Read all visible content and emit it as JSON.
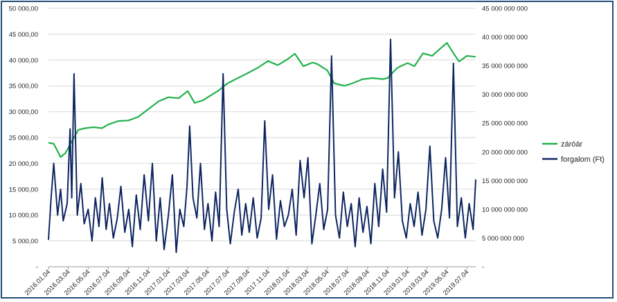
{
  "chart_data": {
    "type": "line",
    "title": "",
    "legend_position": "right",
    "grid": "horizontal",
    "x_axis": {
      "type": "date",
      "range": [
        "2016-01-04",
        "2019-07-31"
      ],
      "tick_labels": [
        "2016.01.04",
        "2016.03.04",
        "2016.05.04",
        "2016.07.04",
        "2016.09.04",
        "2016.11.04",
        "2017.01.04",
        "2017.03.04",
        "2017.05.04",
        "2017.07.04",
        "2017.09.04",
        "2017.11.04",
        "2018.01.04",
        "2018.03.04",
        "2018.05.04",
        "2018.07.04",
        "2018.09.04",
        "2018.11.04",
        "2019.01.04",
        "2019.03.04",
        "2019.05.04",
        "2019.07.04"
      ]
    },
    "y_left": {
      "range": [
        0,
        50000
      ],
      "tick_labels": [
        "-",
        "5 000,00",
        "10 000,00",
        "15 000,00",
        "20 000,00",
        "25 000,00",
        "30 000,00",
        "35 000,00",
        "40 000,00",
        "45 000,00",
        "50 000,00"
      ]
    },
    "y_right": {
      "range": [
        0,
        45000000000
      ],
      "tick_labels": [
        "-",
        "5 000 000 000",
        "10 000 000 000",
        "15 000 000 000",
        "20 000 000 000",
        "25 000 000 000",
        "30 000 000 000",
        "35 000 000 000",
        "40 000 000 000",
        "45 000 000 000"
      ]
    },
    "series": [
      {
        "name": "záróár",
        "axis": "left",
        "color": "#22b14c",
        "points": [
          [
            "2016-01-04",
            24000
          ],
          [
            "2016-01-20",
            23800
          ],
          [
            "2016-02-10",
            21200
          ],
          [
            "2016-02-25",
            22000
          ],
          [
            "2016-03-15",
            24200
          ],
          [
            "2016-04-04",
            26500
          ],
          [
            "2016-04-25",
            26800
          ],
          [
            "2016-05-20",
            27000
          ],
          [
            "2016-06-15",
            26800
          ],
          [
            "2016-07-04",
            27500
          ],
          [
            "2016-08-04",
            28200
          ],
          [
            "2016-09-04",
            28300
          ],
          [
            "2016-10-04",
            29000
          ],
          [
            "2016-11-04",
            30500
          ],
          [
            "2016-12-05",
            32000
          ],
          [
            "2017-01-04",
            32800
          ],
          [
            "2017-02-04",
            32600
          ],
          [
            "2017-03-04",
            34000
          ],
          [
            "2017-03-25",
            31700
          ],
          [
            "2017-04-20",
            32200
          ],
          [
            "2017-05-04",
            32800
          ],
          [
            "2017-06-04",
            34000
          ],
          [
            "2017-07-04",
            35500
          ],
          [
            "2017-08-04",
            36500
          ],
          [
            "2017-09-04",
            37500
          ],
          [
            "2017-10-04",
            38500
          ],
          [
            "2017-11-04",
            39800
          ],
          [
            "2017-12-04",
            39000
          ],
          [
            "2018-01-04",
            40200
          ],
          [
            "2018-01-25",
            41200
          ],
          [
            "2018-02-20",
            38800
          ],
          [
            "2018-03-20",
            39500
          ],
          [
            "2018-04-04",
            39200
          ],
          [
            "2018-05-04",
            38000
          ],
          [
            "2018-05-25",
            35500
          ],
          [
            "2018-06-25",
            35000
          ],
          [
            "2018-07-20",
            35500
          ],
          [
            "2018-08-20",
            36300
          ],
          [
            "2018-09-20",
            36500
          ],
          [
            "2018-10-20",
            36300
          ],
          [
            "2018-11-04",
            36500
          ],
          [
            "2018-12-04",
            38500
          ],
          [
            "2019-01-04",
            39400
          ],
          [
            "2019-01-25",
            38800
          ],
          [
            "2019-02-20",
            41300
          ],
          [
            "2019-03-20",
            40800
          ],
          [
            "2019-04-10",
            42000
          ],
          [
            "2019-05-04",
            43300
          ],
          [
            "2019-05-25",
            41200
          ],
          [
            "2019-06-10",
            39700
          ],
          [
            "2019-07-04",
            40800
          ],
          [
            "2019-07-31",
            40600
          ]
        ]
      },
      {
        "name": "forgalom (Ft)",
        "axis": "right",
        "color": "#0d2560",
        "points": [
          [
            "2016-01-04",
            4700000000
          ],
          [
            "2016-01-12",
            12000000000
          ],
          [
            "2016-01-20",
            18000000000
          ],
          [
            "2016-02-01",
            9000000000
          ],
          [
            "2016-02-10",
            13500000000
          ],
          [
            "2016-02-18",
            8000000000
          ],
          [
            "2016-03-01",
            11000000000
          ],
          [
            "2016-03-10",
            24000000000
          ],
          [
            "2016-03-15",
            12000000000
          ],
          [
            "2016-03-22",
            33600000000
          ],
          [
            "2016-04-01",
            9000000000
          ],
          [
            "2016-04-12",
            14500000000
          ],
          [
            "2016-04-22",
            7500000000
          ],
          [
            "2016-05-04",
            10000000000
          ],
          [
            "2016-05-16",
            4500000000
          ],
          [
            "2016-05-26",
            12000000000
          ],
          [
            "2016-06-06",
            7000000000
          ],
          [
            "2016-06-16",
            15500000000
          ],
          [
            "2016-06-28",
            6500000000
          ],
          [
            "2016-07-08",
            11000000000
          ],
          [
            "2016-07-20",
            5000000000
          ],
          [
            "2016-08-01",
            8500000000
          ],
          [
            "2016-08-12",
            14000000000
          ],
          [
            "2016-08-24",
            6000000000
          ],
          [
            "2016-09-05",
            10000000000
          ],
          [
            "2016-09-16",
            3500000000
          ],
          [
            "2016-09-28",
            12500000000
          ],
          [
            "2016-10-10",
            6500000000
          ],
          [
            "2016-10-22",
            16000000000
          ],
          [
            "2016-11-04",
            8000000000
          ],
          [
            "2016-11-16",
            18000000000
          ],
          [
            "2016-11-28",
            4500000000
          ],
          [
            "2016-12-10",
            12000000000
          ],
          [
            "2016-12-22",
            3000000000
          ],
          [
            "2017-01-04",
            9000000000
          ],
          [
            "2017-01-16",
            16000000000
          ],
          [
            "2017-01-28",
            2500000000
          ],
          [
            "2017-02-08",
            10000000000
          ],
          [
            "2017-02-20",
            7000000000
          ],
          [
            "2017-03-02",
            14000000000
          ],
          [
            "2017-03-10",
            24500000000
          ],
          [
            "2017-03-20",
            12000000000
          ],
          [
            "2017-04-01",
            8500000000
          ],
          [
            "2017-04-12",
            18000000000
          ],
          [
            "2017-04-24",
            6500000000
          ],
          [
            "2017-05-05",
            11000000000
          ],
          [
            "2017-05-17",
            4500000000
          ],
          [
            "2017-05-28",
            13000000000
          ],
          [
            "2017-06-08",
            7000000000
          ],
          [
            "2017-06-20",
            33600000000
          ],
          [
            "2017-07-01",
            10000000000
          ],
          [
            "2017-07-12",
            4000000000
          ],
          [
            "2017-07-24",
            9500000000
          ],
          [
            "2017-08-05",
            13500000000
          ],
          [
            "2017-08-16",
            5500000000
          ],
          [
            "2017-08-28",
            11000000000
          ],
          [
            "2017-09-08",
            6000000000
          ],
          [
            "2017-09-20",
            12000000000
          ],
          [
            "2017-10-02",
            5000000000
          ],
          [
            "2017-10-14",
            8500000000
          ],
          [
            "2017-10-25",
            25400000000
          ],
          [
            "2017-11-06",
            10000000000
          ],
          [
            "2017-11-18",
            16000000000
          ],
          [
            "2017-11-30",
            4800000000
          ],
          [
            "2017-12-12",
            11500000000
          ],
          [
            "2017-12-24",
            7000000000
          ],
          [
            "2018-01-05",
            9000000000
          ],
          [
            "2018-01-17",
            13500000000
          ],
          [
            "2018-01-29",
            5500000000
          ],
          [
            "2018-02-10",
            18500000000
          ],
          [
            "2018-02-22",
            12000000000
          ],
          [
            "2018-03-06",
            19000000000
          ],
          [
            "2018-03-18",
            4000000000
          ],
          [
            "2018-03-30",
            9000000000
          ],
          [
            "2018-04-11",
            14500000000
          ],
          [
            "2018-04-23",
            6500000000
          ],
          [
            "2018-05-05",
            10000000000
          ],
          [
            "2018-05-17",
            36700000000
          ],
          [
            "2018-05-29",
            9000000000
          ],
          [
            "2018-06-10",
            5000000000
          ],
          [
            "2018-06-22",
            13000000000
          ],
          [
            "2018-07-04",
            7000000000
          ],
          [
            "2018-07-16",
            11000000000
          ],
          [
            "2018-07-28",
            3500000000
          ],
          [
            "2018-08-09",
            12000000000
          ],
          [
            "2018-08-21",
            6000000000
          ],
          [
            "2018-09-02",
            10500000000
          ],
          [
            "2018-09-14",
            4000000000
          ],
          [
            "2018-09-26",
            14500000000
          ],
          [
            "2018-10-08",
            7000000000
          ],
          [
            "2018-10-20",
            17000000000
          ],
          [
            "2018-11-01",
            9500000000
          ],
          [
            "2018-11-13",
            39600000000
          ],
          [
            "2018-11-25",
            12000000000
          ],
          [
            "2018-12-07",
            20000000000
          ],
          [
            "2018-12-19",
            8000000000
          ],
          [
            "2018-12-31",
            5000000000
          ],
          [
            "2019-01-12",
            11000000000
          ],
          [
            "2019-01-24",
            7000000000
          ],
          [
            "2019-02-05",
            13000000000
          ],
          [
            "2019-02-17",
            5500000000
          ],
          [
            "2019-03-01",
            10000000000
          ],
          [
            "2019-03-13",
            21000000000
          ],
          [
            "2019-03-25",
            8000000000
          ],
          [
            "2019-04-06",
            5000000000
          ],
          [
            "2019-04-18",
            10000000000
          ],
          [
            "2019-04-30",
            19000000000
          ],
          [
            "2019-05-12",
            8500000000
          ],
          [
            "2019-05-24",
            35400000000
          ],
          [
            "2019-06-05",
            7000000000
          ],
          [
            "2019-06-17",
            12000000000
          ],
          [
            "2019-06-29",
            5000000000
          ],
          [
            "2019-07-11",
            11000000000
          ],
          [
            "2019-07-23",
            6500000000
          ],
          [
            "2019-07-31",
            15200000000
          ]
        ]
      }
    ]
  }
}
